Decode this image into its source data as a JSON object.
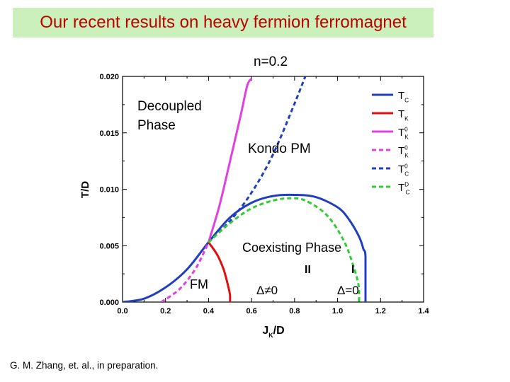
{
  "slide": {
    "banner": "Our recent results on heavy fermion ferromagnet",
    "citation": "G. M. Zhang, et. al., in preparation."
  },
  "chart_data": {
    "type": "line",
    "title": "n=0.2",
    "xlabel_main": "J",
    "xlabel_sub": "K",
    "xlabel_tail": "/D",
    "ylabel": "T/D",
    "xlim": [
      0.0,
      1.4
    ],
    "ylim": [
      0.0,
      0.02
    ],
    "xticks": [
      "0.0",
      "0.2",
      "0.4",
      "0.6",
      "0.8",
      "1.0",
      "1.2",
      "1.4"
    ],
    "yticks": [
      "0.000",
      "0.005",
      "0.010",
      "0.015",
      "0.020"
    ],
    "grid": false,
    "legend_position": "top-right",
    "annotations": {
      "decoupled_1": "Decoupled",
      "decoupled_2": "Phase",
      "kondo_pm": "Kondo PM",
      "coexisting": "Coexisting Phase",
      "fm": "FM",
      "region_II": "II",
      "region_I": "I",
      "delta_ne": "Δ≠0",
      "delta_eq": "Δ=0"
    },
    "series": [
      {
        "name": "Tc",
        "legend_main": "T",
        "legend_sub": "C",
        "legend_sup": "",
        "color": "#1f3fbf",
        "dashed": false,
        "x": [
          0.0,
          0.1,
          0.2,
          0.3,
          0.4,
          0.5,
          0.6,
          0.7,
          0.8,
          0.9,
          1.0,
          1.05,
          1.1,
          1.12,
          1.13,
          1.13
        ],
        "y": [
          0.0,
          0.0003,
          0.0013,
          0.0029,
          0.0053,
          0.0075,
          0.0088,
          0.0094,
          0.0095,
          0.0093,
          0.0084,
          0.0074,
          0.0058,
          0.0047,
          0.004,
          0.0
        ]
      },
      {
        "name": "TK",
        "legend_main": "T",
        "legend_sub": "K",
        "legend_sup": "",
        "color": "#e01010",
        "dashed": false,
        "x": [
          0.4,
          0.44,
          0.47,
          0.49,
          0.5,
          0.5
        ],
        "y": [
          0.0053,
          0.0042,
          0.0029,
          0.0015,
          0.0006,
          0.0
        ]
      },
      {
        "name": "TK0",
        "legend_main": "T",
        "legend_sub": "K",
        "legend_sup": "0",
        "color": "#e040e0",
        "dashed": false,
        "x": [
          0.4,
          0.45,
          0.5,
          0.55,
          0.58,
          0.6
        ],
        "y": [
          0.0053,
          0.0085,
          0.0125,
          0.0166,
          0.0192,
          0.0198
        ]
      },
      {
        "name": "TK0 dashed",
        "legend_main": "T",
        "legend_sub": "K",
        "legend_sup": "0",
        "color": "#e040e0",
        "dashed": true,
        "x": [
          0.18,
          0.25,
          0.3,
          0.35,
          0.4
        ],
        "y": [
          0.0,
          0.0009,
          0.0019,
          0.0033,
          0.0053
        ]
      },
      {
        "name": "Tc0",
        "legend_main": "T",
        "legend_sub": "C",
        "legend_sup": "0",
        "color": "#1f3fbf",
        "dashed": true,
        "x": [
          0.4,
          0.5,
          0.6,
          0.7,
          0.8,
          0.85
        ],
        "y": [
          0.0053,
          0.0072,
          0.0097,
          0.0131,
          0.0176,
          0.02
        ]
      },
      {
        "name": "TcD",
        "legend_main": "T",
        "legend_sub": "C",
        "legend_sup": "D",
        "color": "#33cc33",
        "dashed": true,
        "x": [
          0.4,
          0.5,
          0.6,
          0.7,
          0.78,
          0.85,
          0.95,
          1.03,
          1.08,
          1.1,
          1.1
        ],
        "y": [
          0.0053,
          0.007,
          0.0083,
          0.009,
          0.0092,
          0.009,
          0.0077,
          0.0054,
          0.0028,
          0.0012,
          0.0
        ]
      }
    ]
  }
}
